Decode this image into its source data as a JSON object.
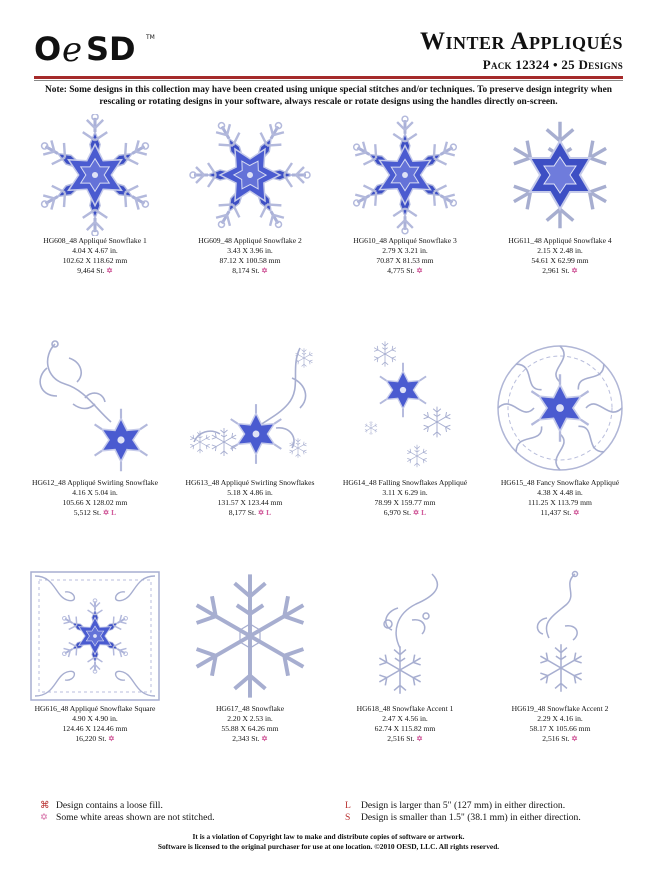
{
  "brand": "OESD",
  "header": {
    "title": "Winter Appliqués",
    "subtitle": "Pack 12324 • 25 Designs"
  },
  "note": "Note:  Some designs in this collection may have been created using unique special stitches and/or techniques.  To preserve design integrity when rescaling or rotating designs in your software, always rescale or rotate designs using the handles directly on-screen.",
  "designs": [
    {
      "name": "HG608_48  Appliqué Snowflake 1",
      "in": "4.04 X 4.67 in.",
      "mm": "102.62 X 118.62 mm",
      "st": "9,464 St.",
      "flags": "✡"
    },
    {
      "name": "HG609_48  Appliqué Snowflake 2",
      "in": "3.43 X 3.96 in.",
      "mm": "87.12 X 100.58 mm",
      "st": "8,174 St.",
      "flags": "✡"
    },
    {
      "name": "HG610_48  Appliqué Snowflake 3",
      "in": "2.79 X 3.21 in.",
      "mm": "70.87 X 81.53 mm",
      "st": "4,775 St.",
      "flags": "✡"
    },
    {
      "name": "HG611_48  Appliqué Snowflake 4",
      "in": "2.15 X 2.48 in.",
      "mm": "54.61 X 62.99 mm",
      "st": "2,961 St.",
      "flags": "✡"
    },
    {
      "name": "HG612_48  Appliqué Swirling Snowflake",
      "in": "4.16 X 5.04 in.",
      "mm": "105.66 X 128.02 mm",
      "st": "5,512 St.",
      "flags": "✡ L"
    },
    {
      "name": "HG613_48  Appliqué Swirling Snowflakes",
      "in": "5.18 X 4.86 in.",
      "mm": "131.57 X 123.44 mm",
      "st": "8,177 St.",
      "flags": "✡ L"
    },
    {
      "name": "HG614_48  Falling Snowflakes Appliqué",
      "in": "3.11 X 6.29 in.",
      "mm": "78.99 X 159.77 mm",
      "st": "6,970 St.",
      "flags": "✡ L"
    },
    {
      "name": "HG615_48  Fancy Snowflake Appliqué",
      "in": "4.38 X 4.48 in.",
      "mm": "111.25 X 113.79 mm",
      "st": "11,437 St.",
      "flags": "✡"
    },
    {
      "name": "HG616_48  Appliqué Snowflake Square",
      "in": "4.90 X 4.90 in.",
      "mm": "124.46 X 124.46 mm",
      "st": "16,220 St.",
      "flags": "✡"
    },
    {
      "name": "HG617_48  Snowflake",
      "in": "2.20 X 2.53 in.",
      "mm": "55.88 X 64.26 mm",
      "st": "2,343 St.",
      "flags": "✡"
    },
    {
      "name": "HG618_48  Snowflake Accent 1",
      "in": "2.47 X 4.56 in.",
      "mm": "62.74 X 115.82 mm",
      "st": "2,516 St.",
      "flags": "✡"
    },
    {
      "name": "HG619_48  Snowflake Accent 2",
      "in": "2.29 X 4.16 in.",
      "mm": "58.17 X 105.66 mm",
      "st": "2,516 St.",
      "flags": "✡"
    }
  ],
  "legend": {
    "loose_fill_symbol": "⌘",
    "loose_fill": "Design contains a loose fill.",
    "white_symbol": "✡",
    "white": "Some white areas shown are not stitched.",
    "large_symbol": "L",
    "large": "Design is larger than 5\" (127 mm) in either direction.",
    "small_symbol": "S",
    "small": "Design is smaller than 1.5\" (38.1 mm) in either direction."
  },
  "footer": {
    "line1": "It is a violation of Copyright law to make and distribute copies of software or artwork.",
    "line2": "Software is licensed to the original purchaser for use at one location. ©2010 OESD, LLC. All rights reserved."
  },
  "colors": {
    "accent_rule": "#a52a2a",
    "applique_blue": "#3d4fc4",
    "light_blue": "#8f9ce6",
    "outline": "#a7aed0",
    "flag_pink": "#d05a9a"
  }
}
